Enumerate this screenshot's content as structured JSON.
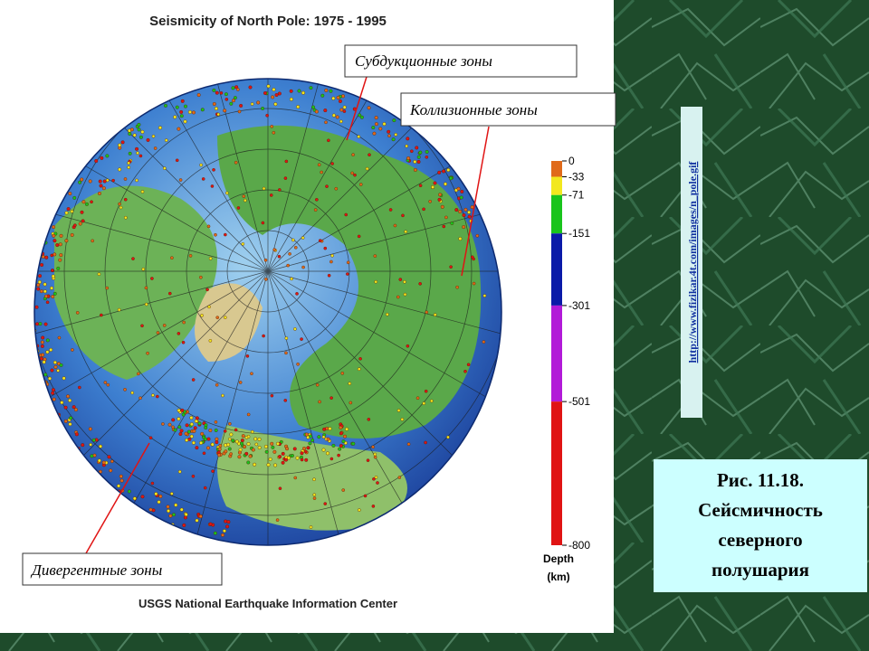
{
  "map": {
    "title": "Seismicity of North Pole: 1975 - 1995",
    "source": "USGS National Earthquake Information Center",
    "labels": [
      "Субдукционные зоны",
      "Коллизионные зоны",
      "Дивергентные зоны"
    ]
  },
  "legend": {
    "title": [
      "Depth",
      "(km)"
    ],
    "ticks": [
      0,
      -33,
      -71,
      -151,
      -301,
      -501,
      -800
    ],
    "colors": [
      "#e06a1a",
      "#f2e81e",
      "#19c41c",
      "#0a1aa8",
      "#b21ad8",
      "#e01414"
    ]
  },
  "url": "http://www.fizikar.4t.com/images/n_pole.gif",
  "caption": [
    "Рис. 11.18.",
    "Сейсмичность",
    "северного",
    "полушария"
  ]
}
